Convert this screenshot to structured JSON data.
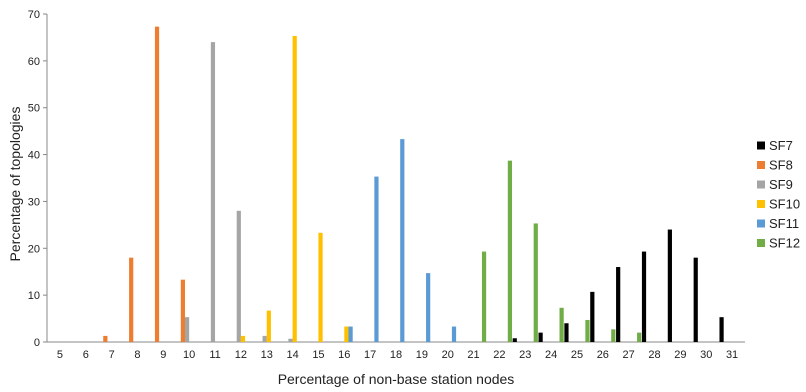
{
  "chart_data": {
    "type": "bar",
    "title": "",
    "xlabel": "Percentage of non-base station nodes",
    "ylabel": "Percentage of topologies",
    "ylim": [
      0,
      70
    ],
    "yticks": [
      0,
      10,
      20,
      30,
      40,
      50,
      60,
      70
    ],
    "categories": [
      "5",
      "6",
      "7",
      "8",
      "9",
      "10",
      "11",
      "12",
      "13",
      "14",
      "15",
      "16",
      "17",
      "18",
      "19",
      "20",
      "21",
      "22",
      "23",
      "24",
      "25",
      "26",
      "27",
      "28",
      "29",
      "30",
      "31"
    ],
    "grid": false,
    "legend_position": "right",
    "series": [
      {
        "name": "SF7",
        "color": "#000000",
        "values": [
          0,
          0,
          0,
          0,
          0,
          0,
          0,
          0,
          0,
          0,
          0,
          0,
          0,
          0,
          0,
          0,
          0,
          0,
          0.8,
          2.0,
          4.0,
          10.7,
          16.0,
          19.3,
          24.0,
          18.0,
          5.3
        ]
      },
      {
        "name": "SF8",
        "color": "#ED7D31",
        "values": [
          0,
          0,
          1.3,
          18.0,
          67.3,
          13.3,
          0,
          0,
          0,
          0,
          0,
          0,
          0,
          0,
          0,
          0,
          0,
          0,
          0,
          0,
          0,
          0,
          0,
          0,
          0,
          0,
          0
        ]
      },
      {
        "name": "SF9",
        "color": "#A5A5A5",
        "values": [
          0,
          0,
          0,
          0,
          0,
          5.3,
          64.0,
          28.0,
          1.3,
          0.7,
          0,
          0,
          0,
          0,
          0,
          0,
          0,
          0,
          0,
          0,
          0,
          0,
          0,
          0,
          0,
          0,
          0
        ]
      },
      {
        "name": "SF10",
        "color": "#FFC000",
        "values": [
          0,
          0,
          0,
          0,
          0,
          0,
          0,
          1.3,
          6.7,
          65.3,
          23.3,
          3.3,
          0,
          0,
          0,
          0,
          0,
          0,
          0,
          0,
          0,
          0,
          0,
          0,
          0,
          0,
          0
        ]
      },
      {
        "name": "SF11",
        "color": "#5B9BD5",
        "values": [
          0,
          0,
          0,
          0,
          0,
          0,
          0,
          0,
          0,
          0,
          0,
          3.3,
          35.3,
          43.3,
          14.7,
          3.3,
          0,
          0,
          0,
          0,
          0,
          0,
          0,
          0,
          0,
          0,
          0
        ]
      },
      {
        "name": "SF12",
        "color": "#70AD47",
        "values": [
          0,
          0,
          0,
          0,
          0,
          0,
          0,
          0,
          0,
          0,
          0,
          0,
          0,
          0,
          0,
          0,
          19.3,
          38.7,
          25.3,
          7.3,
          4.7,
          2.7,
          2.0,
          0,
          0,
          0,
          0
        ]
      }
    ]
  }
}
